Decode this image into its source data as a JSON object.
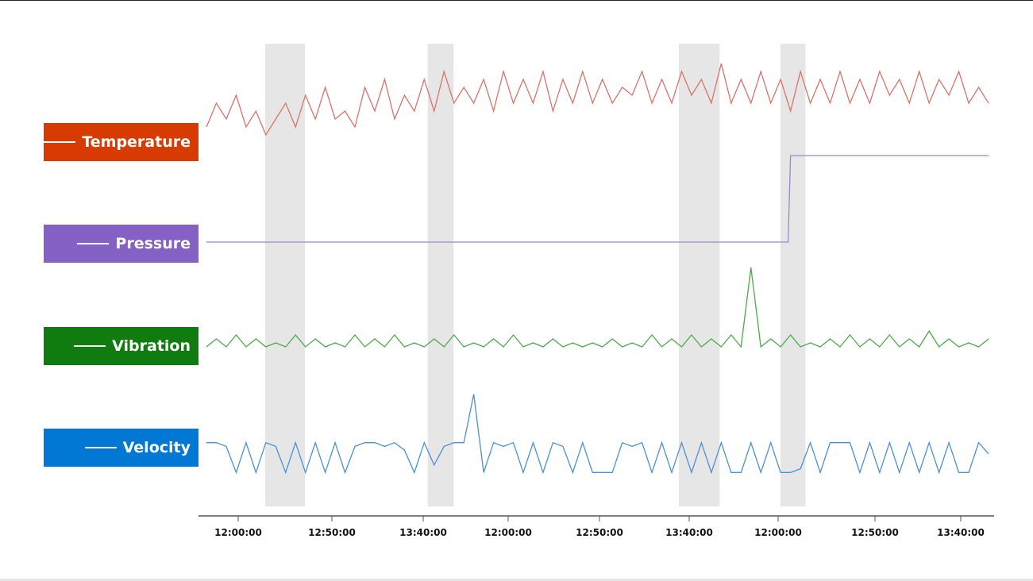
{
  "chart_data": {
    "type": "line",
    "x_tick_labels": [
      "12:00:00",
      "12:50:00",
      "13:40:00",
      "12:00:00",
      "12:50:00",
      "13:40:00",
      "12:00:00",
      "12:50:00",
      "13:40:00"
    ],
    "grid": false,
    "legend_placement": "left",
    "shaded_bands": [
      [
        0.075,
        0.126
      ],
      [
        0.283,
        0.316
      ],
      [
        0.604,
        0.656
      ],
      [
        0.734,
        0.766
      ]
    ],
    "shade_color": "#e6e6e6",
    "series": [
      {
        "name": "Temperature",
        "color": "#d83b01",
        "line_color": "#d9736a",
        "values": [
          3,
          6,
          4,
          7,
          3,
          5,
          2,
          4,
          6,
          3,
          7,
          4,
          8,
          4,
          5,
          3,
          8,
          5,
          9,
          4,
          7,
          5,
          9,
          5,
          10,
          6,
          8,
          6,
          9,
          5,
          10,
          6,
          9,
          6,
          10,
          5,
          9,
          6,
          10,
          6,
          9,
          6,
          8,
          7,
          10,
          6,
          9,
          6,
          10,
          7,
          9,
          6,
          11,
          6,
          9,
          6,
          10,
          6,
          9,
          5,
          10,
          6,
          9,
          6,
          10,
          6,
          9,
          6,
          10,
          7,
          9,
          6,
          10,
          6,
          9,
          7,
          10,
          6,
          8,
          6
        ]
      },
      {
        "name": "Pressure",
        "color": "#8661c5",
        "line_color": "#9a86cc",
        "values": [
          0,
          0,
          0,
          0,
          0,
          0,
          0,
          0,
          0,
          0,
          0,
          0,
          0,
          0,
          0,
          0,
          0,
          0,
          0,
          0,
          0,
          0,
          0,
          0,
          0,
          0,
          0,
          0,
          0,
          0,
          0,
          0,
          0,
          0,
          0,
          0,
          0,
          0,
          0,
          0,
          0,
          0,
          0,
          0,
          0,
          0,
          0,
          0,
          0,
          0,
          0,
          0,
          0,
          0,
          0,
          0,
          0,
          0,
          0,
          1,
          1,
          1,
          1,
          1,
          1,
          1,
          1,
          1,
          1,
          1,
          1,
          1,
          1,
          1,
          1,
          1,
          1,
          1,
          1,
          1
        ]
      },
      {
        "name": "Vibration",
        "color": "#107c10",
        "line_color": "#4caa4c",
        "values": [
          1,
          3,
          1,
          4,
          1,
          3,
          1,
          2,
          1,
          4,
          1,
          3,
          1,
          2,
          1,
          4,
          1,
          3,
          1,
          4,
          1,
          2,
          1,
          3,
          1,
          4,
          1,
          2,
          1,
          3,
          1,
          4,
          1,
          2,
          1,
          3,
          1,
          2,
          1,
          2,
          1,
          3,
          1,
          2,
          1,
          4,
          1,
          3,
          1,
          4,
          1,
          3,
          1,
          4,
          1,
          21,
          1,
          3,
          1,
          4,
          1,
          2,
          1,
          3,
          1,
          4,
          1,
          3,
          1,
          4,
          1,
          3,
          1,
          5,
          1,
          3,
          1,
          2,
          1,
          3
        ]
      },
      {
        "name": "Velocity",
        "color": "#0078d4",
        "line_color": "#4a90d6",
        "values": [
          9,
          9,
          8,
          1,
          9,
          1,
          9,
          8,
          1,
          9,
          1,
          9,
          1,
          9,
          1,
          8,
          9,
          9,
          8,
          9,
          7,
          1,
          9,
          3,
          8,
          9,
          9,
          22,
          1,
          9,
          8,
          9,
          1,
          9,
          1,
          9,
          8,
          1,
          9,
          1,
          1,
          1,
          9,
          8,
          9,
          1,
          9,
          1,
          9,
          1,
          9,
          1,
          9,
          1,
          1,
          9,
          1,
          9,
          1,
          1,
          2,
          9,
          1,
          9,
          9,
          9,
          1,
          9,
          1,
          9,
          1,
          9,
          1,
          9,
          1,
          9,
          1,
          1,
          9,
          6
        ]
      }
    ]
  }
}
